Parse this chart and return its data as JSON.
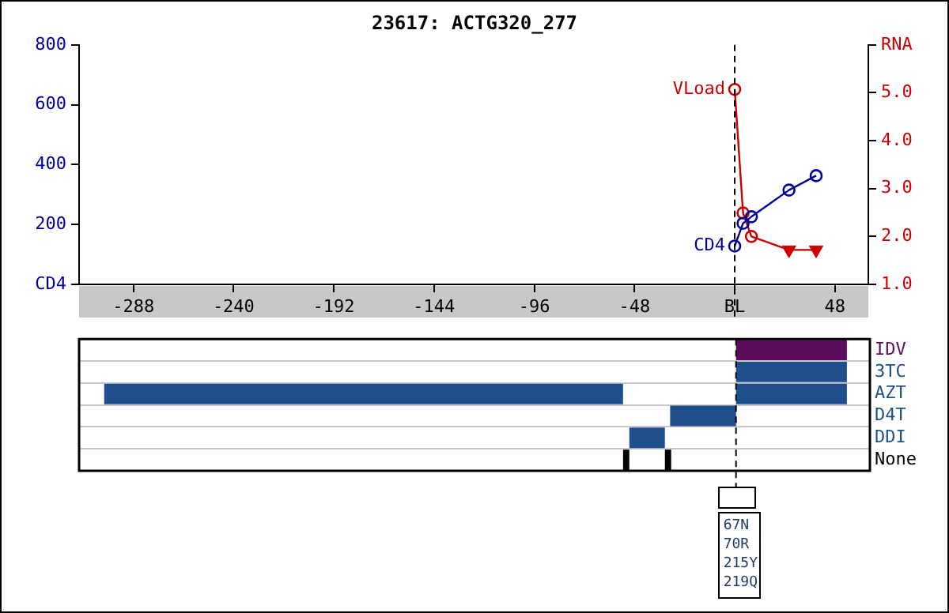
{
  "chart_data": [
    {
      "type": "line",
      "title": "23617: ACTG320_277",
      "xlim": [
        -314,
        64
      ],
      "xticks": [
        -288,
        -240,
        -192,
        -144,
        -96,
        -48,
        {
          "value": 0,
          "label": "BL"
        },
        48
      ],
      "ylim": [
        0,
        800
      ],
      "yticks": [
        {
          "value": 0,
          "label": "CD4"
        },
        200,
        400,
        600,
        800
      ],
      "y2lim": [
        1,
        6
      ],
      "y2ticks": [
        {
          "value": 1,
          "label": "1.0"
        },
        {
          "value": 2,
          "label": "2.0"
        },
        {
          "value": 3,
          "label": "3.0"
        },
        {
          "value": 4,
          "label": "4.0"
        },
        {
          "value": 5,
          "label": "5.0"
        },
        {
          "value": 6,
          "label": "RNA"
        }
      ],
      "marker": "circle",
      "series": [
        {
          "name": "CD4",
          "color": "#000099",
          "x": [
            0,
            4,
            8,
            26,
            39
          ],
          "values": [
            128,
            204,
            226,
            315,
            363
          ]
        },
        {
          "name": "VLoad",
          "color": "#cc0000",
          "axis": "y2",
          "x": [
            0,
            4,
            8,
            26,
            39
          ],
          "values": [
            5.07,
            2.49,
            2.0,
            1.72,
            1.72
          ]
        },
        {
          "type": "scatter",
          "color": "#cc0000",
          "axis": "y2",
          "marker": "triangle",
          "x": [
            26,
            39
          ],
          "values": [
            1.72,
            1.72
          ]
        }
      ],
      "ref_lines": [
        {
          "axis": "x",
          "value": 0,
          "line_style": "dashed"
        }
      ]
    },
    {
      "type": "bar",
      "orientation": "horizontal",
      "xlim": [
        -314,
        64
      ],
      "tick_labels": "y",
      "grid": "y",
      "categories": [
        "IDV",
        "3TC",
        "AZT",
        "D4T",
        "DDI",
        "None"
      ],
      "series": [
        {
          "colors": [
            "#5c0a5c",
            "#1f4e8c",
            "#1f4e8c",
            "#1f4e8c",
            "#1f4e8c",
            "#000000"
          ],
          "base": [
            0,
            0,
            0,
            -31.5,
            -51,
            -34
          ],
          "values": [
            53,
            53,
            53,
            31.5,
            17,
            3
          ]
        },
        {
          "colors": [
            null,
            null,
            "#1f4e8c",
            null,
            null,
            "#000000"
          ],
          "base": [
            null,
            null,
            -302,
            null,
            null,
            -54
          ],
          "values": [
            null,
            null,
            248,
            null,
            null,
            3
          ]
        }
      ],
      "ref_lines": [
        {
          "axis": "x",
          "value": 0,
          "line_style": "dashed"
        }
      ],
      "annotations": [
        "67N",
        "70R",
        "215Y",
        "219Q"
      ]
    }
  ]
}
